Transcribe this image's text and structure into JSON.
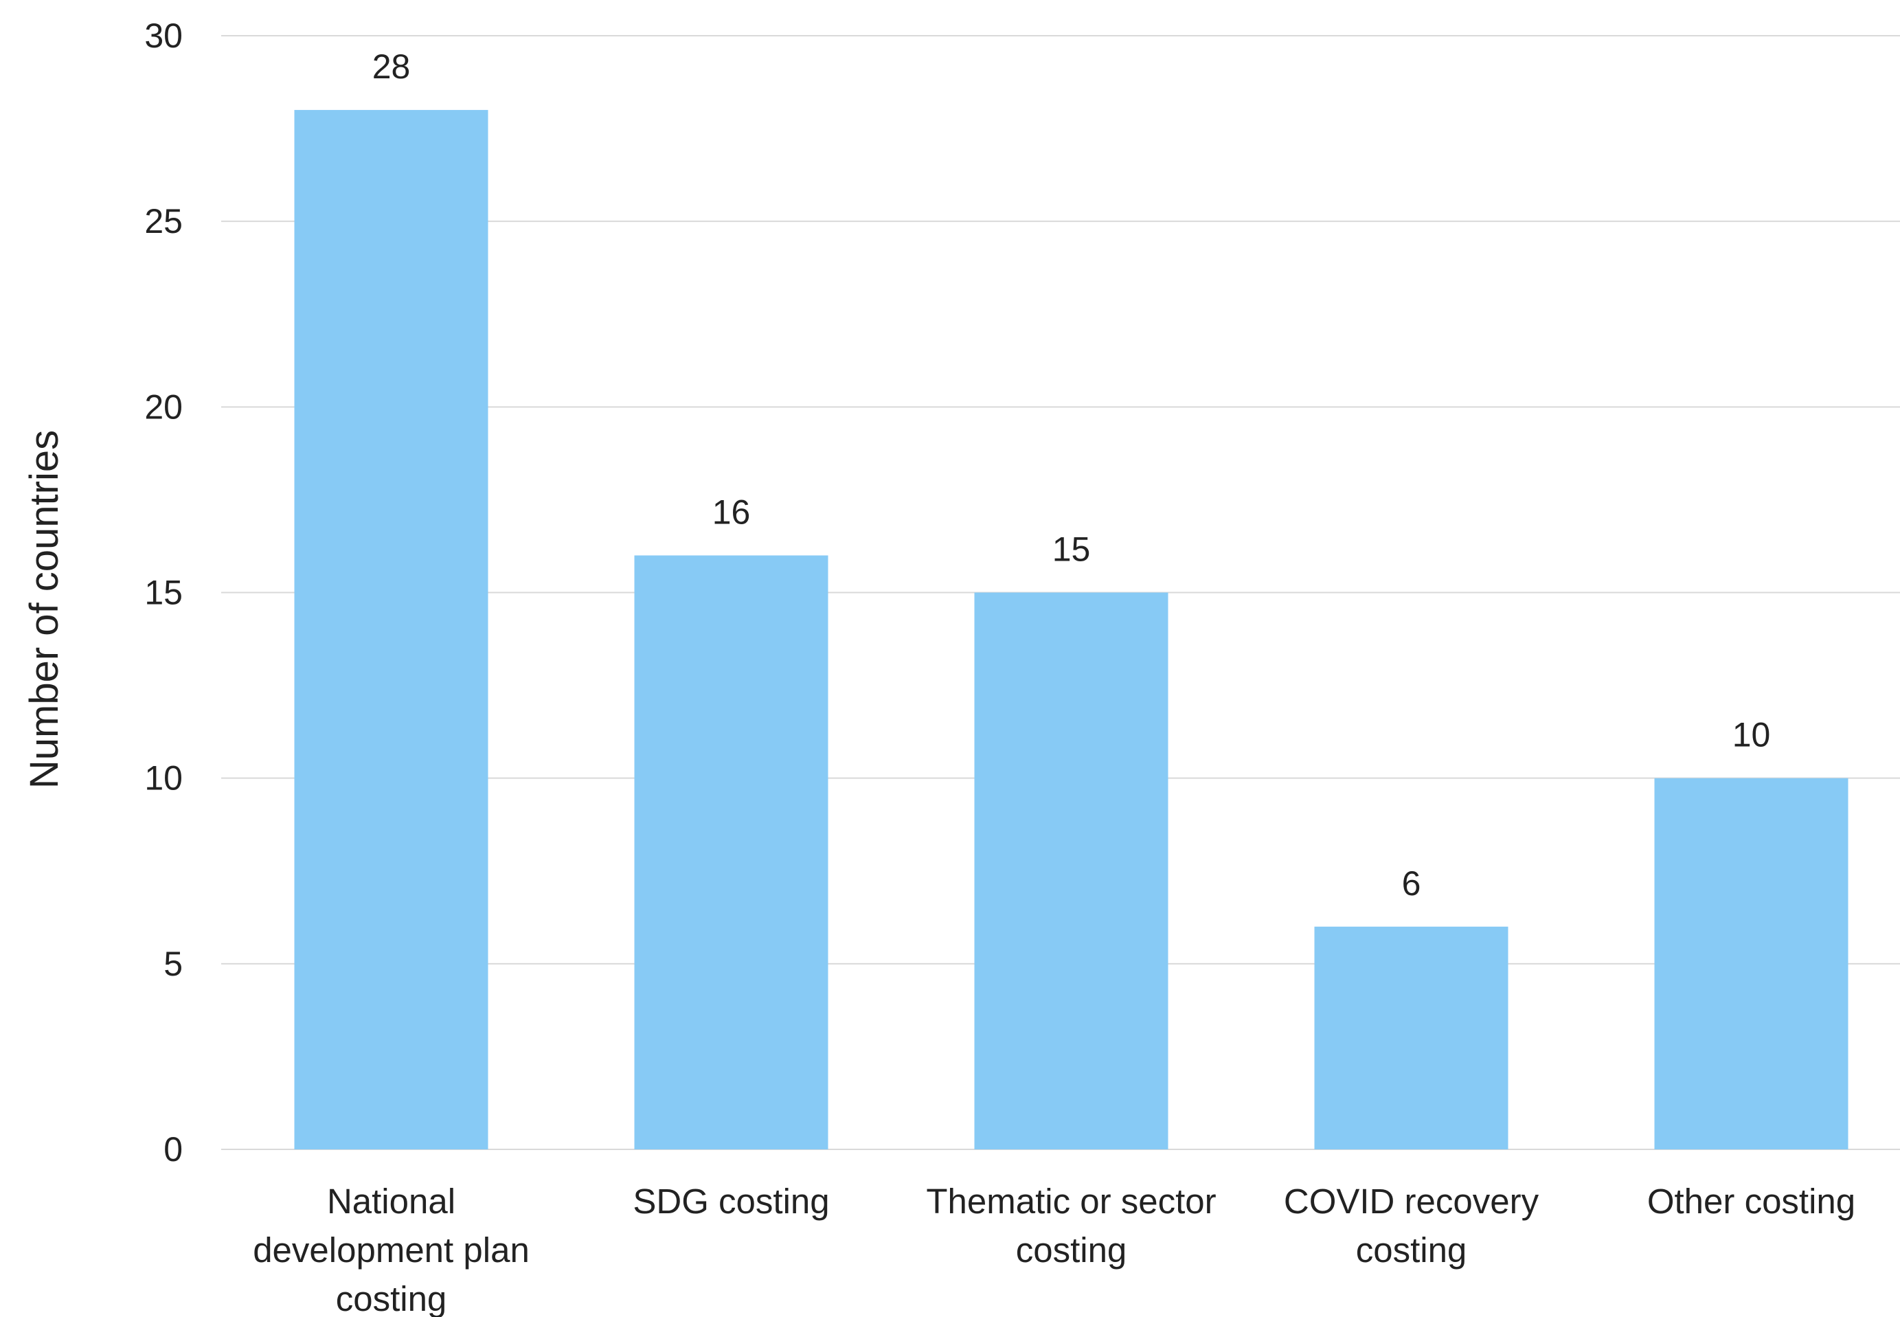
{
  "chart_data": {
    "type": "bar",
    "title": "",
    "xlabel": "",
    "ylabel": "Number of countries",
    "ylim": [
      0,
      30
    ],
    "yticks": [
      0,
      5,
      10,
      15,
      20,
      25,
      30
    ],
    "grid": true,
    "categories": [
      [
        "National",
        "development plan",
        "costing"
      ],
      [
        "SDG costing"
      ],
      [
        "Thematic or sector",
        "costing"
      ],
      [
        "COVID recovery",
        "costing"
      ],
      [
        "Other costing"
      ]
    ],
    "values": [
      28,
      16,
      15,
      6,
      10
    ],
    "data_labels": [
      "28",
      "16",
      "15",
      "6",
      "10"
    ],
    "bar_color": "#87CAF5"
  }
}
